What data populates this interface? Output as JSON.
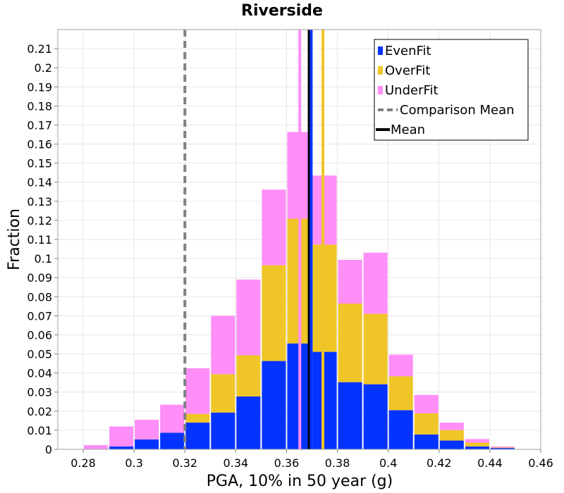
{
  "chart_data": {
    "type": "bar",
    "stacked": true,
    "title": "Riverside",
    "xlabel": "PGA, 10% in 50 year (g)",
    "ylabel": "Fraction",
    "xlim": [
      0.27,
      0.46
    ],
    "ylim": [
      0,
      0.22
    ],
    "x_ticks": [
      "0.28",
      "0.3",
      "0.32",
      "0.34",
      "0.36",
      "0.38",
      "0.4",
      "0.42",
      "0.44",
      "0.46"
    ],
    "y_ticks": [
      "0",
      "0.01",
      "0.02",
      "0.03",
      "0.04",
      "0.05",
      "0.06",
      "0.07",
      "0.08",
      "0.09",
      "0.1",
      "0.11",
      "0.12",
      "0.13",
      "0.14",
      "0.15",
      "0.16",
      "0.17",
      "0.18",
      "0.19",
      "0.2",
      "0.21"
    ],
    "bin_width": 0.01,
    "bin_centers": [
      0.285,
      0.295,
      0.305,
      0.315,
      0.325,
      0.335,
      0.345,
      0.355,
      0.365,
      0.375,
      0.385,
      0.395,
      0.405,
      0.415,
      0.425,
      0.435,
      0.445
    ],
    "series": [
      {
        "name": "EvenFit",
        "color": "#0433ff",
        "values": [
          0.0,
          0.0015,
          0.0052,
          0.0087,
          0.014,
          0.0193,
          0.0277,
          0.0463,
          0.0555,
          0.0511,
          0.0352,
          0.0341,
          0.0205,
          0.0078,
          0.0046,
          0.0015,
          0.0007
        ]
      },
      {
        "name": "OverFit",
        "color": "#f0c528",
        "values": [
          0.0,
          0.0,
          0.0,
          0.0,
          0.0046,
          0.0201,
          0.0216,
          0.0502,
          0.0654,
          0.0562,
          0.0412,
          0.0369,
          0.0178,
          0.0111,
          0.0055,
          0.002,
          0.0003
        ]
      },
      {
        "name": "UnderFit",
        "color": "#ff8ef8",
        "values": [
          0.0022,
          0.0105,
          0.0103,
          0.0147,
          0.0239,
          0.0306,
          0.0397,
          0.0396,
          0.0454,
          0.0362,
          0.0229,
          0.0321,
          0.0113,
          0.0096,
          0.0039,
          0.0019,
          0.0005
        ]
      }
    ],
    "vertical_lines": [
      {
        "name": "UnderFit Mean",
        "x": 0.3652,
        "color": "#ff8ef8",
        "style": "solid",
        "in_legend": false
      },
      {
        "name": "OverFit Mean",
        "x": 0.3743,
        "color": "#f0c528",
        "style": "solid",
        "in_legend": false
      },
      {
        "name": "Comparison Mean",
        "x": 0.32,
        "color": "#808080",
        "style": "dashed",
        "in_legend": true
      },
      {
        "name": "Mean",
        "x": 0.3689,
        "color": "#000000",
        "style": "solid",
        "in_legend": true
      },
      {
        "name": "EvenFit Mean",
        "x": 0.3697,
        "color": "#0433ff",
        "style": "solid",
        "in_legend": false
      }
    ],
    "legend": {
      "position": "top-right",
      "entries": [
        {
          "label": "EvenFit",
          "color": "#0433ff",
          "kind": "square"
        },
        {
          "label": "OverFit",
          "color": "#f0c528",
          "kind": "square"
        },
        {
          "label": "UnderFit",
          "color": "#ff8ef8",
          "kind": "square"
        },
        {
          "label": "Comparison Mean",
          "color": "#808080",
          "kind": "dashed-line"
        },
        {
          "label": "Mean",
          "color": "#000000",
          "kind": "solid-line"
        }
      ]
    },
    "grid": true
  }
}
